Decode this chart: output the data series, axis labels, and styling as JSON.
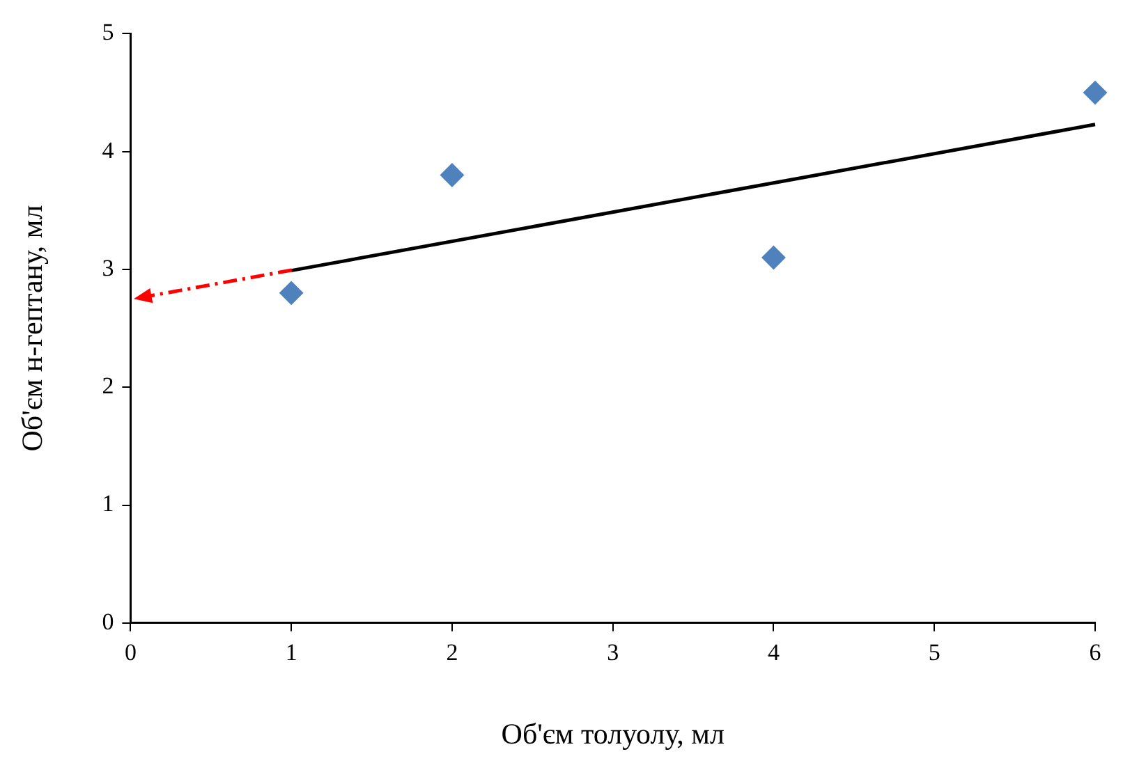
{
  "chart_data": {
    "type": "scatter",
    "xlabel": "Об'єм толуолу, мл",
    "ylabel": "Об'єм н-гептану, мл",
    "xlim": [
      0,
      6
    ],
    "xticks": [
      0,
      1,
      2,
      3,
      4,
      5,
      6
    ],
    "ylim": [
      0,
      5
    ],
    "yticks": [
      0,
      1,
      2,
      3,
      4,
      5
    ],
    "grid": false,
    "legend": false,
    "series": [
      {
        "type": "scatter",
        "color": "#4f81bd",
        "marker": "diamond",
        "x": [
          1,
          2,
          4,
          6
        ],
        "values": [
          2.8,
          3.8,
          3.1,
          4.5
        ]
      },
      {
        "type": "line",
        "color": "#000000",
        "marker": "none",
        "line_style": "solid",
        "x": [
          1,
          6
        ],
        "values": [
          2.99,
          4.23
        ]
      }
    ]
  }
}
